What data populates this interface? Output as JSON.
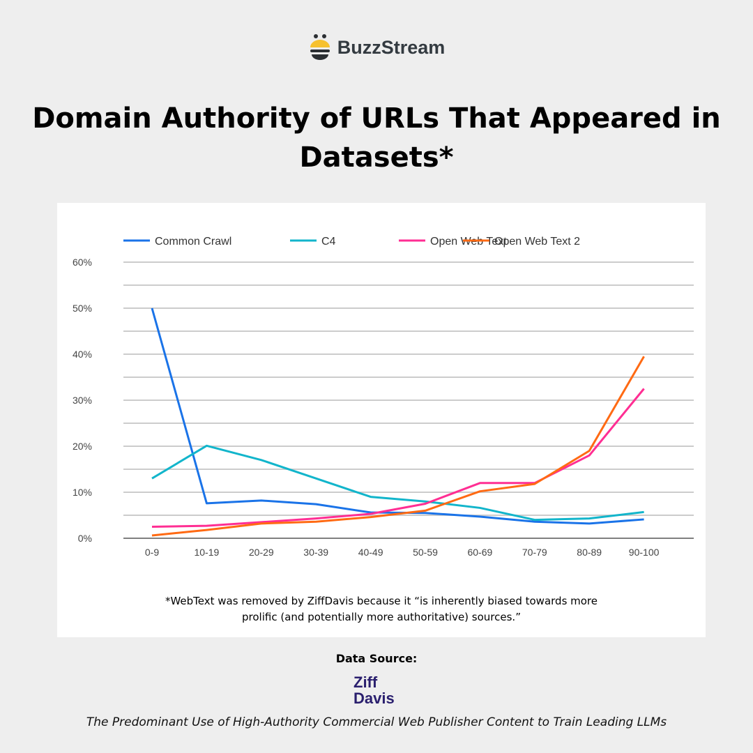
{
  "brand": {
    "name": "BuzzStream"
  },
  "title": "Domain Authority of URLs That Appeared in Datasets*",
  "footnote_line1": "*WebText was removed by ZiffDavis because it “is inherently biased towards more",
  "footnote_line2": "prolific (and potentially more authoritative) sources.”",
  "source": {
    "label": "Data Source:",
    "logo_text": "Ziff Davis",
    "reference": "The Predominant Use of High-Authority Commercial Web Publisher Content to Train Leading LLMs"
  },
  "chart_data": {
    "type": "line",
    "title": "",
    "xlabel": "",
    "ylabel": "",
    "ylim": [
      0,
      60
    ],
    "yticks": [
      0,
      10,
      20,
      30,
      40,
      50,
      60
    ],
    "ytick_labels": [
      "0%",
      "10%",
      "20%",
      "30%",
      "40%",
      "50%",
      "60%"
    ],
    "grid": true,
    "legend": "top",
    "categories": [
      "0-9",
      "10-19",
      "20-29",
      "30-39",
      "40-49",
      "50-59",
      "60-69",
      "70-79",
      "80-89",
      "90-100"
    ],
    "series": [
      {
        "name": "Common Crawl",
        "color": "#1a73e8",
        "values": [
          50,
          7.6,
          8.2,
          7.4,
          5.6,
          5.5,
          4.7,
          3.6,
          3.2,
          4.1
        ]
      },
      {
        "name": "C4",
        "color": "#12b5cb",
        "values": [
          13,
          20.1,
          17,
          13,
          9,
          8,
          6.6,
          4,
          4.3,
          5.7
        ]
      },
      {
        "name": "Open Web Text",
        "color": "#ff2e93",
        "values": [
          2.5,
          2.7,
          3.5,
          4.3,
          5.3,
          7.5,
          12,
          12,
          18,
          32.5
        ]
      },
      {
        "name": "Open Web Text 2",
        "color": "#ff6a13",
        "values": [
          0.6,
          1.8,
          3.2,
          3.6,
          4.6,
          6,
          10.2,
          11.8,
          19,
          39.5
        ]
      }
    ]
  }
}
